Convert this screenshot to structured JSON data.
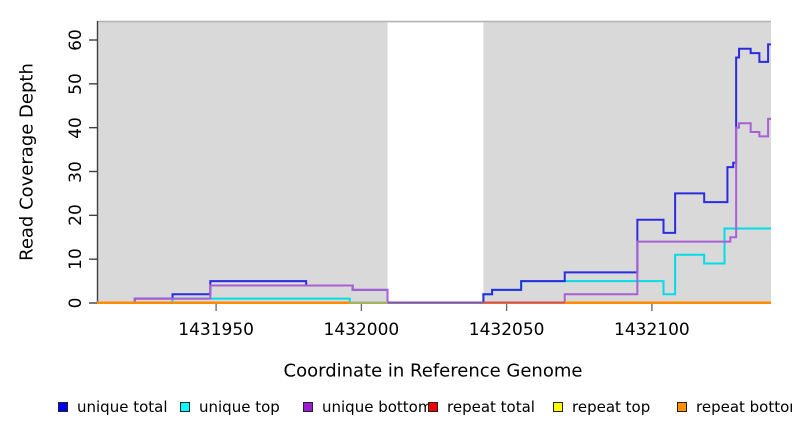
{
  "chart_data": {
    "type": "line",
    "line_style": "step",
    "title": "",
    "xlabel": "Coordinate in Reference Genome",
    "ylabel": "Read Coverage Depth",
    "xlim": [
      1431909,
      1432141
    ],
    "ylim": [
      0,
      64
    ],
    "x_ticks": [
      1431950,
      1432000,
      1432050,
      1432100
    ],
    "y_ticks": [
      0,
      10,
      20,
      30,
      40,
      50,
      60
    ],
    "grid": false,
    "legend_position": "bottom",
    "plot_background": "#d9d9d9",
    "plot_top_border_color": "#b3b3b3",
    "axis_color": "#404040",
    "masked_region": {
      "from": 1432009,
      "to": 1432042,
      "color": "#ffffff"
    },
    "series": [
      {
        "name": "unique total",
        "color": "#2b2be0",
        "legend_color": "#0000ee",
        "steps": [
          [
            1431909,
            0
          ],
          [
            1431922,
            1
          ],
          [
            1431935,
            2
          ],
          [
            1431948,
            5
          ],
          [
            1431981,
            4
          ],
          [
            1431997,
            3
          ],
          [
            1432009,
            0
          ],
          [
            1432042,
            2
          ],
          [
            1432045,
            3
          ],
          [
            1432055,
            5
          ],
          [
            1432070,
            7
          ],
          [
            1432095,
            19
          ],
          [
            1432104,
            16
          ],
          [
            1432108,
            25
          ],
          [
            1432118,
            23
          ],
          [
            1432126,
            31
          ],
          [
            1432128,
            32
          ],
          [
            1432129,
            56
          ],
          [
            1432130,
            58
          ],
          [
            1432134,
            57
          ],
          [
            1432137,
            55
          ],
          [
            1432140,
            59
          ]
        ]
      },
      {
        "name": "unique top",
        "color": "#00dde6",
        "legend_color": "#00ffff",
        "steps": [
          [
            1431909,
            0
          ],
          [
            1431935,
            1
          ],
          [
            1431996,
            0
          ],
          [
            1432042,
            2
          ],
          [
            1432045,
            3
          ],
          [
            1432055,
            5
          ],
          [
            1432104,
            2
          ],
          [
            1432108,
            11
          ],
          [
            1432118,
            9
          ],
          [
            1432125,
            17
          ]
        ]
      },
      {
        "name": "unique bottom",
        "color": "#a95fd5",
        "legend_color": "#9b1fd1",
        "steps": [
          [
            1431909,
            0
          ],
          [
            1431922,
            1
          ],
          [
            1431948,
            4
          ],
          [
            1431997,
            3
          ],
          [
            1432009,
            0
          ],
          [
            1432070,
            2
          ],
          [
            1432095,
            14
          ],
          [
            1432127,
            15
          ],
          [
            1432129,
            40
          ],
          [
            1432130,
            41
          ],
          [
            1432134,
            39
          ],
          [
            1432137,
            38
          ],
          [
            1432140,
            42
          ]
        ]
      },
      {
        "name": "repeat total",
        "color": "#e00000",
        "legend_color": "#ee0000",
        "steps": [
          [
            1431909,
            0
          ]
        ]
      },
      {
        "name": "repeat top",
        "color": "#ffff00",
        "legend_color": "#ffff00",
        "steps": [
          [
            1431909,
            0
          ]
        ]
      },
      {
        "name": "repeat bottom",
        "color": "#ff8c00",
        "legend_color": "#ff9000",
        "steps": [
          [
            1431909,
            0
          ]
        ]
      }
    ],
    "zero_overlap_segments": [
      {
        "from": 1431909,
        "to": 1431996,
        "color": "#ff8c00"
      },
      {
        "from": 1431996,
        "to": 1432009,
        "color": "#8cbf80"
      },
      {
        "from": 1432009,
        "to": 1432042,
        "color": "#6459dd"
      },
      {
        "from": 1432042,
        "to": 1432070,
        "color": "#d24f62"
      },
      {
        "from": 1432070,
        "to": 1432141,
        "color": "#ff8c00"
      }
    ]
  }
}
